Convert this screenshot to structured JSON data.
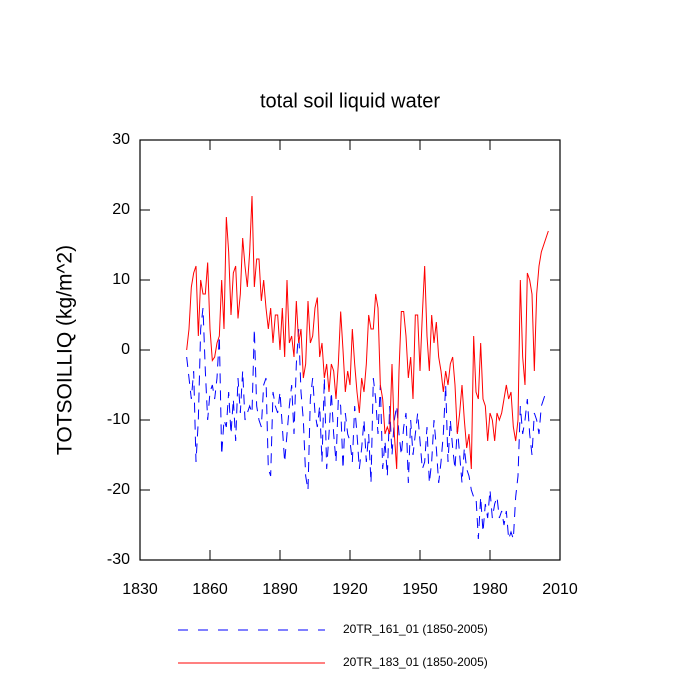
{
  "chart_data": {
    "type": "line",
    "title": "total soil liquid water",
    "y_label": "TOTSOILLIQ  (kg/m^2)",
    "x": [
      1850,
      1851,
      1852,
      1853,
      1854,
      1855,
      1856,
      1857,
      1858,
      1859,
      1860,
      1861,
      1862,
      1863,
      1864,
      1865,
      1866,
      1867,
      1868,
      1869,
      1870,
      1871,
      1872,
      1873,
      1874,
      1875,
      1876,
      1877,
      1878,
      1879,
      1880,
      1881,
      1882,
      1883,
      1884,
      1885,
      1886,
      1887,
      1888,
      1889,
      1890,
      1891,
      1892,
      1893,
      1894,
      1895,
      1896,
      1897,
      1898,
      1899,
      1900,
      1901,
      1902,
      1903,
      1904,
      1905,
      1906,
      1907,
      1908,
      1909,
      1910,
      1911,
      1912,
      1913,
      1914,
      1915,
      1916,
      1917,
      1918,
      1919,
      1920,
      1921,
      1922,
      1923,
      1924,
      1925,
      1926,
      1927,
      1928,
      1929,
      1930,
      1931,
      1932,
      1933,
      1934,
      1935,
      1936,
      1937,
      1938,
      1939,
      1940,
      1941,
      1942,
      1943,
      1944,
      1945,
      1946,
      1947,
      1948,
      1949,
      1950,
      1951,
      1952,
      1953,
      1954,
      1955,
      1956,
      1957,
      1958,
      1959,
      1960,
      1961,
      1962,
      1963,
      1964,
      1965,
      1966,
      1967,
      1968,
      1969,
      1970,
      1971,
      1972,
      1973,
      1974,
      1975,
      1976,
      1977,
      1978,
      1979,
      1980,
      1981,
      1982,
      1983,
      1984,
      1985,
      1986,
      1987,
      1988,
      1989,
      1990,
      1991,
      1992,
      1993,
      1994,
      1995,
      1996,
      1997,
      1998,
      1999,
      2000,
      2001,
      2002,
      2003,
      2004,
      2005
    ],
    "series": [
      {
        "name": "20TR_161_01 (1850-2005)",
        "color": "#0000ff",
        "dashed": true,
        "values": [
          -1,
          -4,
          -7,
          -3,
          -16,
          -10,
          3,
          6,
          -3,
          -10,
          -6,
          -5,
          -7,
          -4,
          2,
          -15,
          -10,
          -11,
          -6,
          -12,
          -7,
          -13,
          -4,
          -9,
          -3,
          -10,
          -9,
          -8,
          -9,
          3,
          -8,
          -10,
          -11,
          -5,
          -4,
          -17,
          -18,
          -6,
          -8,
          -9,
          -6,
          -11,
          -16,
          -12,
          -8,
          -5,
          -12,
          -2,
          3,
          -6,
          -10,
          -18,
          -20,
          -7,
          -4,
          -9,
          -11,
          -8,
          -16,
          -4,
          -17,
          -12,
          -6,
          -12,
          -16,
          -7,
          -8,
          -17,
          -9,
          -12,
          -13,
          -16,
          -8,
          -12,
          -17,
          -14,
          -10,
          -16,
          -12,
          -19,
          -4,
          -7,
          -12,
          -5,
          -17,
          -13,
          -18,
          -8,
          -15,
          -10,
          -8,
          -12,
          -15,
          -11,
          -9,
          -19,
          -10,
          -15,
          -12,
          -9,
          -13,
          -17,
          -16,
          -11,
          -19,
          -16,
          -10,
          -14,
          -19,
          -16,
          -12,
          -5,
          -16,
          -10,
          -14,
          -17,
          -11,
          -15,
          -19,
          -14,
          -17,
          -18,
          -20,
          -21,
          -21,
          -27,
          -21,
          -26,
          -22,
          -24,
          -20,
          -24,
          -22,
          -21,
          -24,
          -23,
          -25,
          -23,
          -27,
          -26,
          -27,
          -21,
          -18,
          -8,
          -12,
          -10,
          -7,
          -12,
          -15,
          -9,
          -10,
          -12,
          -8,
          -7,
          -6,
          -6
        ]
      },
      {
        "name": "20TR_183_01 (1850-2005)",
        "color": "#ff0000",
        "dashed": false,
        "values": [
          0,
          3,
          9,
          11,
          12,
          2,
          10,
          8,
          8,
          12.5,
          3,
          -1.5,
          -1,
          1,
          2,
          10,
          3,
          19,
          14,
          5,
          11,
          12,
          4.5,
          8,
          16,
          12,
          9,
          14,
          22,
          9,
          13,
          13,
          7,
          10,
          6,
          3,
          6,
          1,
          5,
          5,
          0,
          6,
          -1,
          10,
          1,
          2,
          -1,
          7,
          1,
          3,
          -4,
          -2,
          7,
          1,
          2,
          6,
          7.5,
          -1,
          1,
          -4,
          -2,
          -6,
          -2,
          -3,
          -7,
          -2,
          5.5,
          0,
          -6,
          -3,
          -5,
          3,
          -2,
          -6,
          -9,
          -4,
          -6,
          -2,
          5,
          3,
          3,
          8,
          6,
          -5,
          -7,
          -12,
          -11,
          -12,
          -2,
          -12,
          -17,
          -3,
          5.5,
          5.5,
          2,
          -4,
          -1,
          -7,
          5,
          5,
          -3,
          5,
          12,
          2,
          -3,
          5,
          1,
          4,
          -1,
          -3,
          -6,
          -3,
          -5,
          -2,
          -1,
          -5,
          -12,
          -9,
          -5,
          -10,
          -14,
          -12,
          -17,
          2,
          -6,
          -7,
          1,
          -7,
          -8,
          -13,
          -9,
          -10,
          -13,
          -9,
          -10,
          -9,
          -7,
          -5,
          -7,
          -6,
          -11,
          -13,
          -10,
          10,
          -1,
          -5,
          11,
          10,
          8,
          -3,
          8,
          12,
          14,
          15,
          16,
          17
        ]
      }
    ],
    "xlim": [
      1830,
      2010
    ],
    "xticks": [
      1830,
      1860,
      1890,
      1920,
      1950,
      1980,
      2010
    ],
    "ylim": [
      -30,
      30
    ],
    "yticks": [
      -30,
      -20,
      -10,
      0,
      10,
      20,
      30
    ],
    "legend": "bottom"
  }
}
